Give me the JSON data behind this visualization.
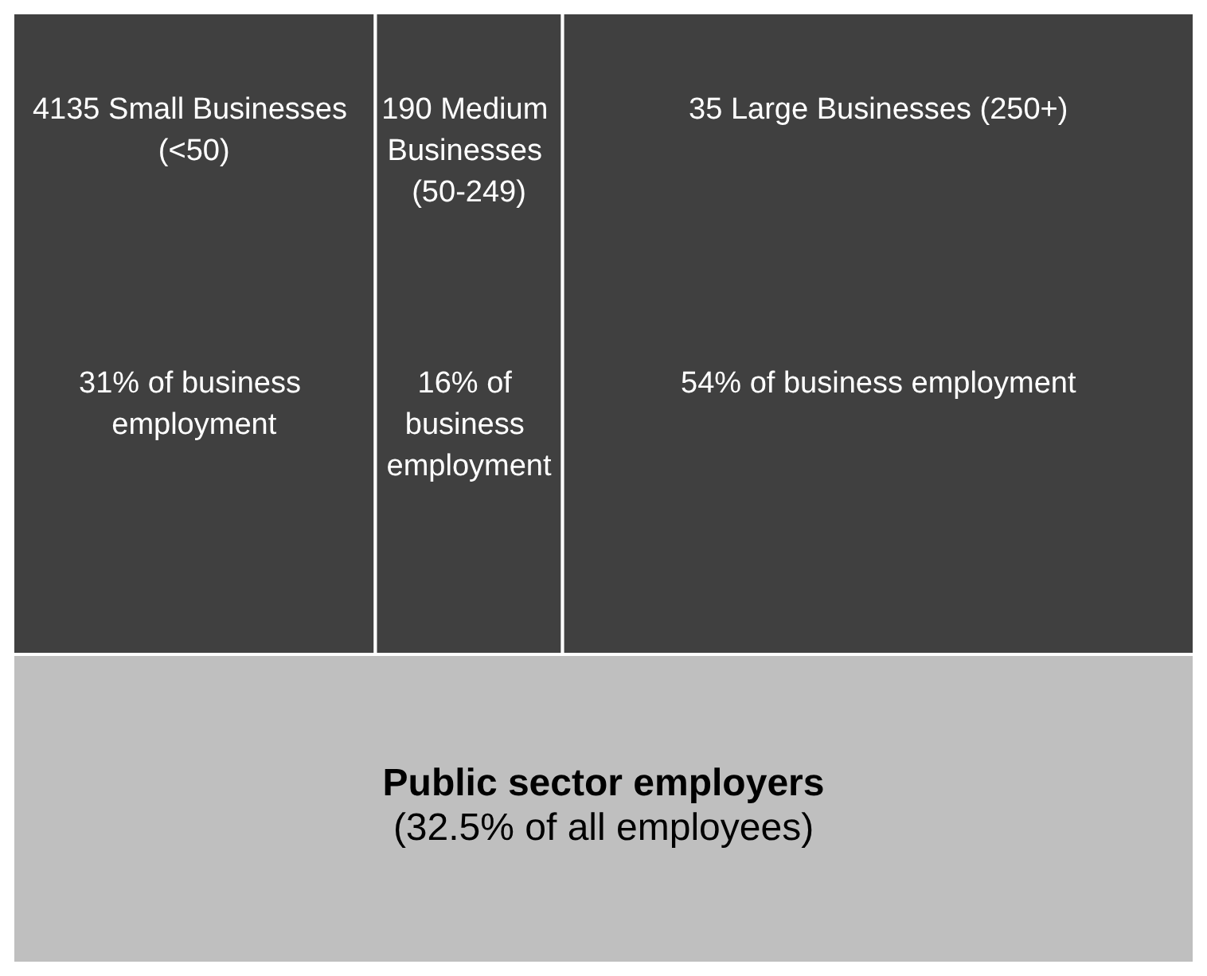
{
  "chart_data": {
    "type": "other",
    "categories": [
      "4135 Small Businesses (<50)",
      "190 Medium Businesses (50-249)",
      "35 Large Businesses (250+)",
      "Public sector employers"
    ],
    "values": [
      31,
      16,
      54,
      32.5
    ],
    "value_labels": [
      "31% of business employment",
      "16% of business employment",
      "54% of business employment",
      "(32.5% of all employees)"
    ],
    "colors": [
      "#404040",
      "#404040",
      "#404040",
      "#bfbfbf"
    ]
  }
}
